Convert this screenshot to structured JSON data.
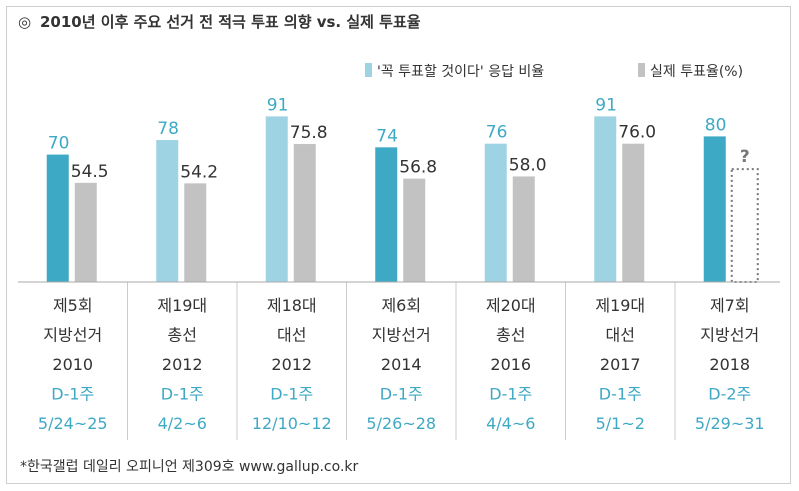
{
  "chart_data": {
    "type": "bar",
    "title": "2010년 이후 주요 선거 전 적극 투표 의향 vs. 실제 투표율",
    "title_mark": "◎",
    "source": "*한국갤럽 데일리 오피니언 제309호 www.gallup.co.kr",
    "legend_position": "top-right",
    "ylim": [
      0,
      100
    ],
    "grid": false,
    "categories": [
      {
        "name": "제5회",
        "type": "지방선거",
        "year": "2010",
        "week": "D-1주",
        "dates": "5/24~25"
      },
      {
        "name": "제19대",
        "type": "총선",
        "year": "2012",
        "week": "D-1주",
        "dates": "4/2~6"
      },
      {
        "name": "제18대",
        "type": "대선",
        "year": "2012",
        "week": "D-1주",
        "dates": "12/10~12"
      },
      {
        "name": "제6회",
        "type": "지방선거",
        "year": "2014",
        "week": "D-1주",
        "dates": "5/26~28"
      },
      {
        "name": "제20대",
        "type": "총선",
        "year": "2016",
        "week": "D-1주",
        "dates": "4/4~6"
      },
      {
        "name": "제19대",
        "type": "대선",
        "year": "2017",
        "week": "D-1주",
        "dates": "5/1~2"
      },
      {
        "name": "제7회",
        "type": "지방선거",
        "year": "2018",
        "week": "D-2주",
        "dates": "5/29~31"
      }
    ],
    "series": [
      {
        "name": "'꼭 투표할 것이다' 응답 비율",
        "values": [
          70,
          78,
          91,
          74,
          76,
          91,
          80
        ],
        "labels": [
          "70",
          "78",
          "91",
          "74",
          "76",
          "91",
          "80"
        ],
        "colors": [
          "#3ea9c4",
          "#9ed3e3",
          "#9ed3e3",
          "#3ea9c4",
          "#9ed3e3",
          "#9ed3e3",
          "#3ea9c4"
        ],
        "legend_color": "#9ed3e3"
      },
      {
        "name": "실제 투표율(%)",
        "values": [
          54.5,
          54.2,
          75.8,
          56.8,
          58.0,
          76.0,
          null
        ],
        "labels": [
          "54.5",
          "54.2",
          "75.8",
          "56.8",
          "58.0",
          "76.0",
          "?"
        ],
        "color": "#c2c2c2",
        "placeholder_color": "#777777"
      }
    ],
    "colors": {
      "title": "#333333",
      "value_label_intent": "#3ea9c4",
      "value_label_actual": "#333333",
      "category_text": "#333333",
      "week_text": "#3ea9c4",
      "axis_line": "#aaaaaa",
      "divider": "#cccccc"
    }
  }
}
